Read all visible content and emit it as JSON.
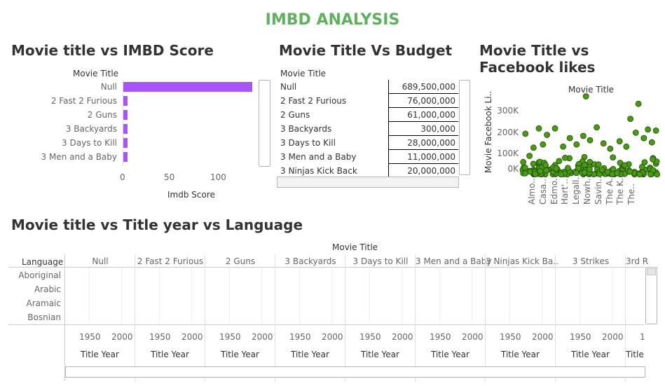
{
  "dashboard_title": "IMBD ANALYSIS",
  "colors": {
    "title_green": "#5fb05f",
    "bar_purple": "#a855f7",
    "dot_green": "#4a9a17",
    "dot_outline": "#1f4a05"
  },
  "sheet1": {
    "title": "Movie title vs IMBD Score",
    "row_header": "Movie Title",
    "axis_title": "Imdb Score",
    "ticks": [
      "0",
      "50",
      "100"
    ]
  },
  "sheet2": {
    "title": "Movie Title Vs Budget",
    "row_header": "Movie Title",
    "rows": [
      {
        "title": "Null",
        "budget": "689,500,000"
      },
      {
        "title": "2 Fast 2 Furious",
        "budget": "76,000,000"
      },
      {
        "title": "2 Guns",
        "budget": "61,000,000"
      },
      {
        "title": "3 Backyards",
        "budget": "300,000"
      },
      {
        "title": "3 Days to Kill",
        "budget": "28,000,000"
      },
      {
        "title": "3 Men and a Baby",
        "budget": "11,000,000"
      },
      {
        "title": "3 Ninjas Kick Back",
        "budget": "20,000,000"
      }
    ]
  },
  "sheet3": {
    "title_line1": "Movie Title vs",
    "title_line2": "Facebook likes",
    "header": "Movie Title",
    "y_axis_title": "Movie Facebook Li..",
    "y_ticks": [
      "300K",
      "200K",
      "100K",
      "0K"
    ],
    "x_labels": [
      "Almo..",
      "Casa..",
      "Edmo..",
      "Hart'..",
      "Legall..",
      "Nowh..",
      "Savin..",
      "The A..",
      "The K..",
      "The.."
    ]
  },
  "sheet4": {
    "title": "Movie title vs Title year vs Language",
    "col_header": "Movie Title",
    "row_header": "Language",
    "columns": [
      "Null",
      "2 Fast 2 Furious",
      "2 Guns",
      "3 Backyards",
      "3 Days to Kill",
      "3 Men and a Baby",
      "3 Ninjas Kick Ba..",
      "3 Strikes",
      "3rd R"
    ],
    "languages": [
      "Aboriginal",
      "Arabic",
      "Aramaic",
      "Bosnian"
    ],
    "year_ticks": [
      "1950",
      "2000"
    ],
    "axis_title": "Title Year",
    "last_partial_tick": "1",
    "last_partial_axis": "Title"
  },
  "chart_data": [
    {
      "type": "bar",
      "title": "Movie title vs IMBD Score",
      "categories": [
        "Null",
        "2 Fast 2 Furious",
        "2 Guns",
        "3 Backyards",
        "3 Days to Kill",
        "3 Men and a Baby"
      ],
      "values": [
        138,
        5,
        5,
        5,
        5,
        5
      ],
      "xlabel": "Imdb Score",
      "ylabel": "Movie Title",
      "xlim": [
        0,
        140
      ]
    },
    {
      "type": "table",
      "title": "Movie Title Vs Budget",
      "columns": [
        "Movie Title",
        "Budget"
      ],
      "rows": [
        [
          "Null",
          689500000
        ],
        [
          "2 Fast 2 Furious",
          76000000
        ],
        [
          "2 Guns",
          61000000
        ],
        [
          "3 Backyards",
          300000
        ],
        [
          "3 Days to Kill",
          28000000
        ],
        [
          "3 Men and a Baby",
          11000000
        ],
        [
          "3 Ninjas Kick Back",
          20000000
        ]
      ]
    },
    {
      "type": "scatter",
      "title": "Movie Title vs Facebook likes",
      "ylabel": "Movie Facebook Li..",
      "ylim": [
        -30000,
        350000
      ],
      "highlight_points": [
        {
          "i": 0.02,
          "y": 170000
        },
        {
          "i": 0.08,
          "y": 105000
        },
        {
          "i": 0.12,
          "y": 195000
        },
        {
          "i": 0.15,
          "y": 120000
        },
        {
          "i": 0.18,
          "y": 165000
        },
        {
          "i": 0.24,
          "y": 195000
        },
        {
          "i": 0.3,
          "y": 110000
        },
        {
          "i": 0.35,
          "y": 150000
        },
        {
          "i": 0.4,
          "y": 120000
        },
        {
          "i": 0.45,
          "y": 160000
        },
        {
          "i": 0.47,
          "y": 345000
        },
        {
          "i": 0.5,
          "y": 140000
        },
        {
          "i": 0.55,
          "y": 200000
        },
        {
          "i": 0.6,
          "y": 125000
        },
        {
          "i": 0.65,
          "y": 100000
        },
        {
          "i": 0.72,
          "y": 135000
        },
        {
          "i": 0.77,
          "y": 110000
        },
        {
          "i": 0.8,
          "y": 240000
        },
        {
          "i": 0.84,
          "y": 175000
        },
        {
          "i": 0.86,
          "y": 310000
        },
        {
          "i": 0.9,
          "y": 150000
        },
        {
          "i": 0.93,
          "y": 190000
        },
        {
          "i": 0.96,
          "y": 130000
        },
        {
          "i": 0.99,
          "y": 185000
        }
      ]
    },
    {
      "type": "table",
      "title": "Movie title vs Title year vs Language",
      "columns": [
        "Null",
        "2 Fast 2 Furious",
        "2 Guns",
        "3 Backyards",
        "3 Days to Kill",
        "3 Men and a Baby",
        "3 Ninjas Kick Ba..",
        "3 Strikes",
        "3rd R"
      ],
      "rows": [
        "Aboriginal",
        "Arabic",
        "Aramaic",
        "Bosnian"
      ],
      "xlabel": "Title Year",
      "xticks": [
        1950,
        2000
      ]
    }
  ]
}
